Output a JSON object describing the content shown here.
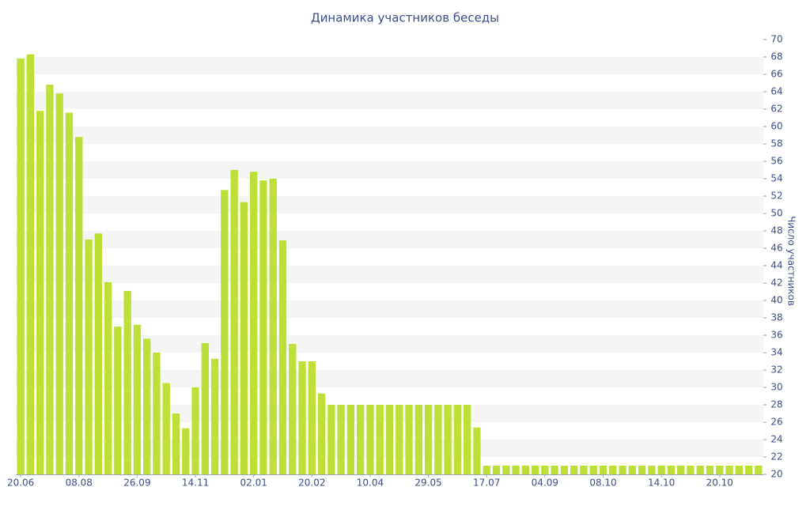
{
  "chart_data": {
    "type": "bar",
    "title": "Динамика участников беседы",
    "y_label": "Число участников",
    "categories": [
      "20.06",
      null,
      null,
      null,
      null,
      null,
      "08.08",
      null,
      null,
      null,
      null,
      null,
      "26.09",
      null,
      null,
      null,
      null,
      null,
      "14.11",
      null,
      null,
      null,
      null,
      null,
      "02.01",
      null,
      null,
      null,
      null,
      null,
      "20.02",
      null,
      null,
      null,
      null,
      null,
      "10.04",
      null,
      null,
      null,
      null,
      null,
      "29.05",
      null,
      null,
      null,
      null,
      null,
      "17.07",
      null,
      null,
      null,
      null,
      null,
      "04.09",
      null,
      null,
      null,
      null,
      null,
      "08.10",
      null,
      null,
      null,
      null,
      null,
      "14.10",
      null,
      null,
      null,
      null,
      null,
      "20.10",
      null,
      null,
      null,
      null
    ],
    "values": [
      67.8,
      68.3,
      61.8,
      64.8,
      63.8,
      61.6,
      58.8,
      47,
      47.7,
      42.1,
      37,
      41.1,
      37.2,
      35.6,
      34,
      30.5,
      27,
      25.3,
      30,
      35.1,
      33.3,
      52.7,
      55,
      51.3,
      54.8,
      53.8,
      54,
      46.9,
      35,
      33,
      33,
      29.3,
      28,
      28,
      28,
      28,
      28,
      28,
      28,
      28,
      28,
      28,
      28,
      28,
      28,
      28,
      28,
      25.4,
      21,
      21,
      21,
      21,
      21,
      21,
      21,
      21,
      21,
      21,
      21,
      21,
      21,
      21,
      21,
      21,
      21,
      21,
      21,
      21,
      21,
      21,
      21,
      21,
      21,
      21,
      21,
      21,
      21
    ],
    "color": "#bde038",
    "ylim": [
      20,
      70
    ],
    "yticks": [
      20,
      22,
      24,
      26,
      28,
      30,
      32,
      34,
      36,
      38,
      40,
      42,
      44,
      46,
      48,
      50,
      52,
      54,
      56,
      58,
      60,
      62,
      64,
      66,
      68,
      70
    ],
    "grid": true
  }
}
